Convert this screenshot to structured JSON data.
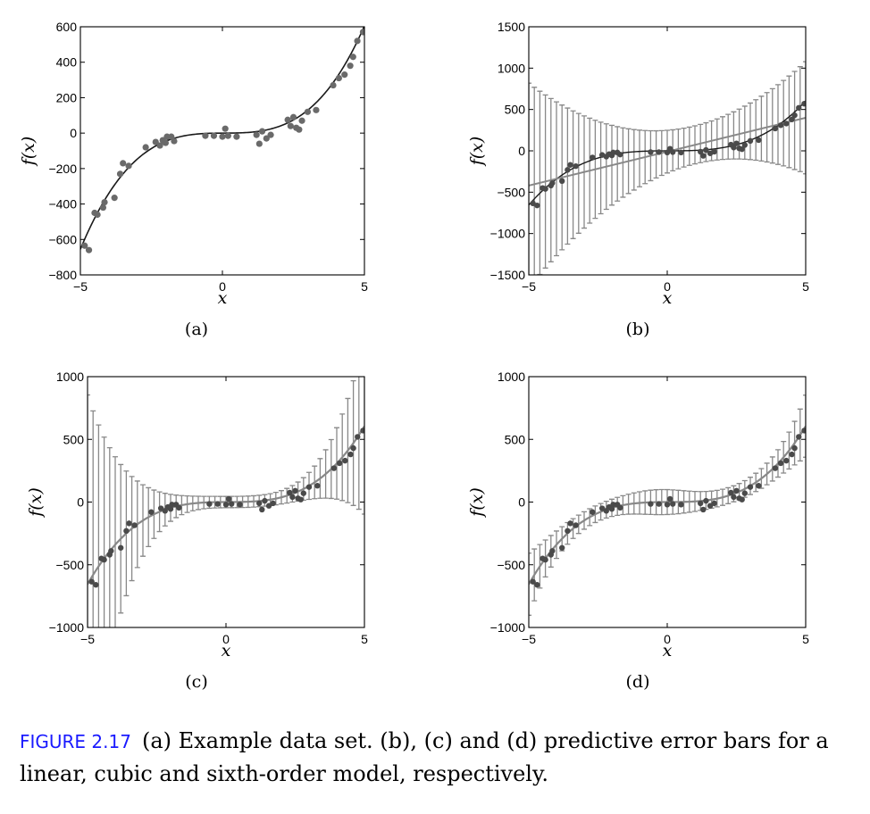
{
  "caption": {
    "label": "FIGURE 2.17",
    "text": "(a) Example data set. (b), (c) and (d) predictive error bars for a linear, cubic and sixth-order model, respectively."
  },
  "colors": {
    "points_a": "#6a6a6a",
    "points": "#4a4a4a",
    "true_curve": "#1a1a1a",
    "model_curve": "#888888",
    "error_bars": "#888888"
  },
  "chart_data": [
    {
      "type": "scatter",
      "panel_label": "(a)",
      "xlabel": "x",
      "ylabel": "f(x)",
      "xlim": [
        -5,
        5
      ],
      "ylim": [
        -800,
        600
      ],
      "xticks": [
        "-5",
        "0",
        "5"
      ],
      "yticks": [
        "600",
        "400",
        "200",
        "0",
        "-200",
        "-400",
        "-600",
        "-800"
      ],
      "curve": "f(x) = 5x^3 - x^2 + x",
      "points": {
        "x": [
          -4.85,
          -4.7,
          -4.5,
          -4.4,
          -4.2,
          -4.15,
          -3.8,
          -3.6,
          -3.5,
          -3.3,
          -2.7,
          -2.35,
          -2.2,
          -2.1,
          -2.0,
          -1.95,
          -1.8,
          -1.7,
          -0.6,
          -0.3,
          0.0,
          0.1,
          0.2,
          0.5,
          1.2,
          1.3,
          1.4,
          1.55,
          1.7,
          2.3,
          2.4,
          2.5,
          2.6,
          2.7,
          2.8,
          3.0,
          3.3,
          3.9,
          4.1,
          4.3,
          4.5,
          4.6,
          4.75,
          4.95
        ],
        "y": [
          -635,
          -660,
          -450,
          -460,
          -420,
          -390,
          -365,
          -230,
          -170,
          -185,
          -80,
          -50,
          -70,
          -40,
          -55,
          -20,
          -20,
          -45,
          -15,
          -15,
          -20,
          25,
          -15,
          -20,
          -10,
          -60,
          10,
          -30,
          -10,
          75,
          40,
          90,
          30,
          20,
          70,
          120,
          130,
          270,
          310,
          330,
          380,
          430,
          520,
          570
        ]
      }
    },
    {
      "type": "line",
      "panel_label": "(b)",
      "xlabel": "x",
      "ylabel": "f(x)",
      "xlim": [
        -5,
        5
      ],
      "ylim": [
        -1500,
        1500
      ],
      "xticks": [
        "-5",
        "0",
        "5"
      ],
      "yticks": [
        "1500",
        "1000",
        "500",
        "0",
        "-500",
        "-1000",
        "-1500"
      ],
      "model": "linear",
      "line": {
        "x": [
          -5,
          5
        ],
        "y": [
          -420,
          400
        ]
      },
      "error_bars": {
        "x_range": [
          -5,
          5
        ],
        "count": 51,
        "half_width_formula": "w(x) = 230 + 28*(x-1)^2",
        "x_center": 1,
        "half_width_min": 230
      },
      "points": {
        "x": [
          -4.85,
          -4.7,
          -4.5,
          -4.4,
          -4.2,
          -4.15,
          -3.8,
          -3.6,
          -3.5,
          -3.3,
          -2.7,
          -2.35,
          -2.2,
          -2.1,
          -2.0,
          -1.95,
          -1.8,
          -1.7,
          -0.6,
          -0.3,
          0.0,
          0.1,
          0.2,
          0.5,
          1.2,
          1.3,
          1.4,
          1.55,
          1.7,
          2.3,
          2.4,
          2.5,
          2.6,
          2.7,
          2.8,
          3.0,
          3.3,
          3.9,
          4.1,
          4.3,
          4.5,
          4.6,
          4.75,
          4.95
        ],
        "y": [
          -635,
          -660,
          -450,
          -460,
          -420,
          -390,
          -365,
          -230,
          -170,
          -185,
          -80,
          -50,
          -70,
          -40,
          -55,
          -20,
          -20,
          -45,
          -15,
          -15,
          -20,
          25,
          -15,
          -20,
          -10,
          -60,
          10,
          -30,
          -10,
          75,
          40,
          90,
          30,
          20,
          70,
          120,
          130,
          270,
          310,
          330,
          380,
          430,
          520,
          570
        ]
      }
    },
    {
      "type": "line",
      "panel_label": "(c)",
      "xlabel": "x",
      "ylabel": "f(x)",
      "xlim": [
        -5,
        5
      ],
      "ylim": [
        -1000,
        1000
      ],
      "xticks": [
        "-5",
        "0",
        "5"
      ],
      "yticks": [
        "1000",
        "500",
        "0",
        "-500",
        "-1000"
      ],
      "model": "cubic",
      "curve": "5x^3 - x^2 + x",
      "error_bars": {
        "x_range": [
          -5,
          5
        ],
        "count": 51,
        "half_width_formula": "w(x) = 45 + 1.6*(x-0.5)^4",
        "x_center": 0.5,
        "half_width_min": 45
      },
      "points": {
        "x": [
          -4.85,
          -4.7,
          -4.5,
          -4.4,
          -4.2,
          -4.15,
          -3.8,
          -3.6,
          -3.5,
          -3.3,
          -2.7,
          -2.35,
          -2.2,
          -2.1,
          -2.0,
          -1.95,
          -1.8,
          -1.7,
          -0.6,
          -0.3,
          0.0,
          0.1,
          0.2,
          0.5,
          1.2,
          1.3,
          1.4,
          1.55,
          1.7,
          2.3,
          2.4,
          2.5,
          2.6,
          2.7,
          2.8,
          3.0,
          3.3,
          3.9,
          4.1,
          4.3,
          4.5,
          4.6,
          4.75,
          4.95
        ],
        "y": [
          -635,
          -660,
          -450,
          -460,
          -420,
          -390,
          -365,
          -230,
          -170,
          -185,
          -80,
          -50,
          -70,
          -40,
          -55,
          -20,
          -20,
          -45,
          -15,
          -15,
          -20,
          25,
          -15,
          -20,
          -10,
          -60,
          10,
          -30,
          -10,
          75,
          40,
          90,
          30,
          20,
          70,
          120,
          130,
          270,
          310,
          330,
          380,
          430,
          520,
          570
        ]
      }
    },
    {
      "type": "line",
      "panel_label": "(d)",
      "xlabel": "x",
      "ylabel": "f(x)",
      "xlim": [
        -5,
        5
      ],
      "ylim": [
        -1000,
        1000
      ],
      "xticks": [
        "-5",
        "0",
        "5"
      ],
      "yticks": [
        "1000",
        "500",
        "0",
        "-500",
        "-1000"
      ],
      "model": "sixth-order",
      "curve": "5x^3 - x^2 + x",
      "error_bars": {
        "x_range": [
          -5,
          5
        ],
        "count": 51,
        "half_width_formula": "w(x) = 60 + 40*exp(-(x+0.2)^2/2) + 0.012*x^6",
        "x_center": -0.2,
        "half_width_min": 60
      },
      "points": {
        "x": [
          -4.85,
          -4.7,
          -4.5,
          -4.4,
          -4.2,
          -4.15,
          -3.8,
          -3.6,
          -3.5,
          -3.3,
          -2.7,
          -2.35,
          -2.2,
          -2.1,
          -2.0,
          -1.95,
          -1.8,
          -1.7,
          -0.6,
          -0.3,
          0.0,
          0.1,
          0.2,
          0.5,
          1.2,
          1.3,
          1.4,
          1.55,
          1.7,
          2.3,
          2.4,
          2.5,
          2.6,
          2.7,
          2.8,
          3.0,
          3.3,
          3.9,
          4.1,
          4.3,
          4.5,
          4.6,
          4.75,
          4.95
        ],
        "y": [
          -635,
          -660,
          -450,
          -460,
          -420,
          -390,
          -365,
          -230,
          -170,
          -185,
          -80,
          -50,
          -70,
          -40,
          -55,
          -20,
          -20,
          -45,
          -15,
          -15,
          -20,
          25,
          -15,
          -20,
          -10,
          -60,
          10,
          -30,
          -10,
          75,
          40,
          90,
          30,
          20,
          70,
          120,
          130,
          270,
          310,
          330,
          380,
          430,
          520,
          570
        ]
      }
    }
  ]
}
